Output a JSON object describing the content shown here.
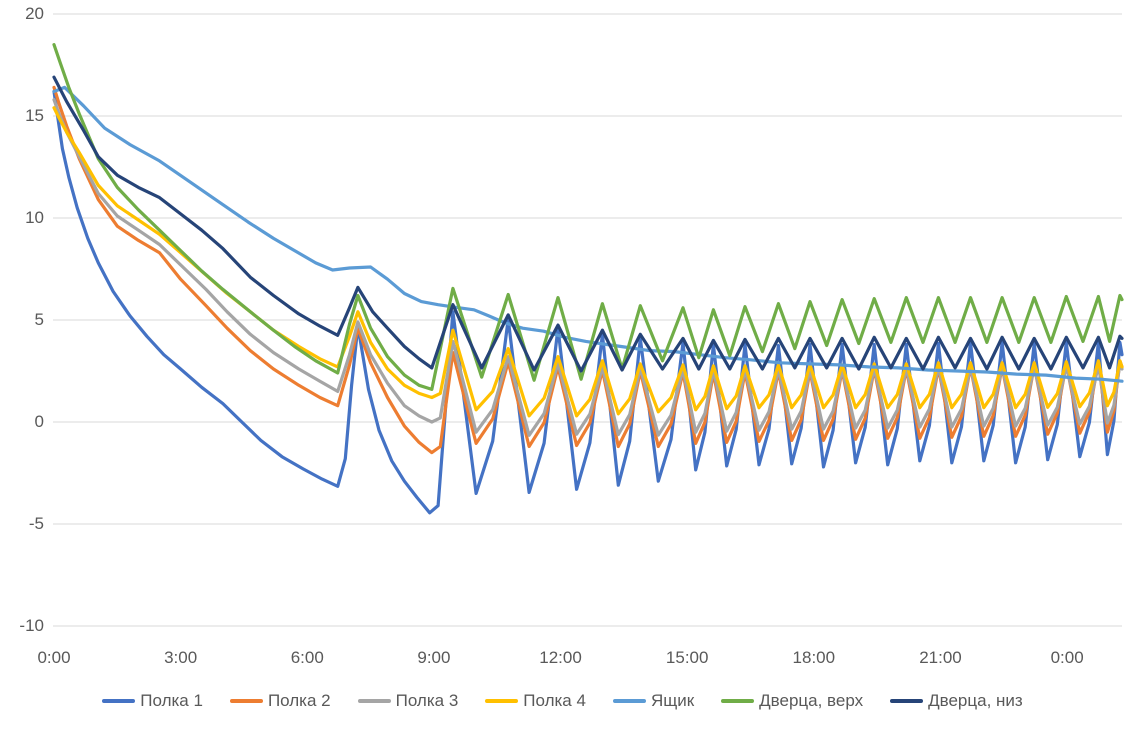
{
  "chart_data": {
    "type": "line",
    "title": "",
    "background": "#FFFFFF",
    "text_color": "#595959",
    "gridline_color": "#D9D9D9",
    "grid": "horizontal-only",
    "legend_position": "bottom",
    "x_axis": {
      "tick_labels": [
        "0:00",
        "3:00",
        "6:00",
        "9:00",
        "12:00",
        "15:00",
        "18:00",
        "21:00",
        "0:00"
      ],
      "tick_hours": [
        0,
        3,
        6,
        9,
        12,
        15,
        18,
        21,
        24
      ],
      "range_hours": [
        0,
        25.3
      ]
    },
    "y_axis": {
      "tick_labels": [
        "-10",
        "-5",
        "0",
        "5",
        "10",
        "15",
        "20"
      ],
      "ticks": [
        -10,
        -5,
        0,
        5,
        10,
        15,
        20
      ],
      "range": [
        -10,
        20
      ]
    },
    "cycle_peak_times_hours": [
      9.45,
      10.76,
      11.94,
      12.99,
      13.89,
      14.9,
      15.62,
      16.37,
      17.16,
      17.91,
      18.67,
      19.43,
      20.19,
      20.95,
      21.71,
      22.46,
      23.22,
      23.98,
      24.74,
      25.25
    ],
    "series": [
      {
        "name": "Полка 1",
        "color": "#4472C4",
        "shape": "shelf",
        "pre": [
          [
            0,
            16.2
          ],
          [
            0.1,
            14.8
          ],
          [
            0.2,
            13.4
          ],
          [
            0.35,
            12.0
          ],
          [
            0.55,
            10.5
          ],
          [
            0.8,
            9.0
          ],
          [
            1.05,
            7.8
          ],
          [
            1.4,
            6.4
          ],
          [
            1.8,
            5.2
          ],
          [
            2.2,
            4.2
          ],
          [
            2.6,
            3.3
          ],
          [
            3.0,
            2.6
          ],
          [
            3.5,
            1.7
          ],
          [
            4.0,
            0.9
          ],
          [
            4.45,
            0.0
          ],
          [
            4.9,
            -0.9
          ],
          [
            5.4,
            -1.7
          ],
          [
            5.9,
            -2.3
          ],
          [
            6.35,
            -2.8
          ],
          [
            6.72,
            -3.15
          ],
          [
            6.9,
            -1.8
          ],
          [
            7.05,
            1.8
          ],
          [
            7.2,
            4.7
          ],
          [
            7.45,
            1.6
          ],
          [
            7.7,
            -0.4
          ],
          [
            8.0,
            -1.9
          ],
          [
            8.3,
            -2.9
          ],
          [
            8.6,
            -3.7
          ],
          [
            8.9,
            -4.45
          ],
          [
            9.1,
            -4.1
          ]
        ],
        "peaks": [
          5.4,
          5.05,
          4.6,
          4.3,
          4.1,
          3.9,
          3.8,
          3.8,
          3.75,
          3.8,
          3.8,
          3.8,
          3.8,
          3.85,
          3.9,
          3.9,
          3.85,
          3.9,
          3.9,
          3.9
        ],
        "dips": [
          -3.5,
          -3.45,
          -3.3,
          -3.1,
          -2.9,
          -2.35,
          -2.15,
          -2.1,
          -2.05,
          -2.2,
          -2.0,
          -2.1,
          -1.9,
          -2.0,
          -1.9,
          -2.0,
          -1.85,
          -1.7,
          -1.6
        ],
        "tail": [
          [
            25.3,
            3.3
          ]
        ]
      },
      {
        "name": "Полка 2",
        "color": "#ED7D31",
        "shape": "shelf",
        "pre": [
          [
            0,
            16.4
          ],
          [
            0.12,
            15.6
          ],
          [
            0.3,
            14.5
          ],
          [
            0.6,
            12.9
          ],
          [
            1.05,
            10.9
          ],
          [
            1.5,
            9.6
          ],
          [
            2.0,
            8.9
          ],
          [
            2.5,
            8.3
          ],
          [
            3.0,
            7.0
          ],
          [
            3.6,
            5.7
          ],
          [
            4.1,
            4.6
          ],
          [
            4.65,
            3.5
          ],
          [
            5.2,
            2.6
          ],
          [
            5.8,
            1.8
          ],
          [
            6.3,
            1.2
          ],
          [
            6.72,
            0.8
          ],
          [
            7.0,
            2.8
          ],
          [
            7.2,
            4.6
          ],
          [
            7.5,
            2.9
          ],
          [
            7.9,
            1.2
          ],
          [
            8.3,
            -0.2
          ],
          [
            8.65,
            -1.0
          ],
          [
            8.95,
            -1.5
          ],
          [
            9.15,
            -1.2
          ]
        ],
        "peaks": [
          3.4,
          2.95,
          2.7,
          2.55,
          2.5,
          2.45,
          2.4,
          2.45,
          2.5,
          2.5,
          2.55,
          2.6,
          2.6,
          2.65,
          2.7,
          2.7,
          2.75,
          2.85,
          2.95,
          3.0
        ],
        "dips": [
          -1.05,
          -1.2,
          -1.15,
          -1.2,
          -1.2,
          -1.05,
          -1.0,
          -0.95,
          -0.9,
          -0.9,
          -0.85,
          -0.8,
          -0.8,
          -0.75,
          -0.7,
          -0.7,
          -0.6,
          -0.55,
          -0.5
        ],
        "tail": [
          [
            25.3,
            2.7
          ]
        ]
      },
      {
        "name": "Полка 3",
        "color": "#A5A5A5",
        "shape": "shelf",
        "pre": [
          [
            0,
            15.8
          ],
          [
            0.12,
            15.1
          ],
          [
            0.3,
            14.2
          ],
          [
            0.6,
            13.0
          ],
          [
            1.05,
            11.2
          ],
          [
            1.5,
            10.1
          ],
          [
            2.0,
            9.4
          ],
          [
            2.5,
            8.7
          ],
          [
            3.0,
            7.7
          ],
          [
            3.6,
            6.5
          ],
          [
            4.1,
            5.4
          ],
          [
            4.65,
            4.3
          ],
          [
            5.2,
            3.4
          ],
          [
            5.8,
            2.6
          ],
          [
            6.3,
            2.0
          ],
          [
            6.72,
            1.5
          ],
          [
            7.0,
            3.3
          ],
          [
            7.2,
            4.9
          ],
          [
            7.5,
            3.3
          ],
          [
            7.9,
            1.9
          ],
          [
            8.3,
            0.8
          ],
          [
            8.65,
            0.3
          ],
          [
            8.95,
            0.0
          ],
          [
            9.15,
            0.2
          ]
        ],
        "peaks": [
          3.95,
          3.2,
          2.9,
          2.7,
          2.65,
          2.6,
          2.55,
          2.6,
          2.6,
          2.6,
          2.6,
          2.65,
          2.65,
          2.7,
          2.7,
          2.7,
          2.7,
          2.75,
          2.8,
          2.85
        ],
        "dips": [
          -0.5,
          -0.65,
          -0.6,
          -0.62,
          -0.64,
          -0.5,
          -0.45,
          -0.4,
          -0.35,
          -0.35,
          -0.3,
          -0.3,
          -0.25,
          -0.25,
          -0.2,
          -0.2,
          -0.15,
          -0.1,
          -0.05
        ],
        "tail": [
          [
            25.3,
            2.6
          ]
        ]
      },
      {
        "name": "Полка 4",
        "color": "#FFC000",
        "shape": "shelf",
        "pre": [
          [
            0,
            15.4
          ],
          [
            0.12,
            14.9
          ],
          [
            0.3,
            14.2
          ],
          [
            0.6,
            13.2
          ],
          [
            1.05,
            11.6
          ],
          [
            1.5,
            10.6
          ],
          [
            2.0,
            9.9
          ],
          [
            2.5,
            9.2
          ],
          [
            3.0,
            8.3
          ],
          [
            3.6,
            7.2
          ],
          [
            4.1,
            6.3
          ],
          [
            4.65,
            5.4
          ],
          [
            5.2,
            4.5
          ],
          [
            5.8,
            3.7
          ],
          [
            6.3,
            3.1
          ],
          [
            6.72,
            2.7
          ],
          [
            7.0,
            4.2
          ],
          [
            7.2,
            5.4
          ],
          [
            7.5,
            3.9
          ],
          [
            7.9,
            2.6
          ],
          [
            8.3,
            1.8
          ],
          [
            8.65,
            1.4
          ],
          [
            8.95,
            1.2
          ],
          [
            9.15,
            1.4
          ]
        ],
        "peaks": [
          4.5,
          3.6,
          3.2,
          3.0,
          2.85,
          2.8,
          2.75,
          2.75,
          2.8,
          2.8,
          2.8,
          2.85,
          2.85,
          2.9,
          2.9,
          2.9,
          2.9,
          2.95,
          3.0,
          3.0
        ],
        "dips": [
          0.6,
          0.3,
          0.3,
          0.4,
          0.5,
          0.6,
          0.65,
          0.7,
          0.7,
          0.7,
          0.7,
          0.7,
          0.7,
          0.7,
          0.7,
          0.7,
          0.72,
          0.75,
          0.8
        ],
        "tail": [
          [
            25.3,
            2.7
          ]
        ]
      },
      {
        "name": "Ящик",
        "color": "#5B9BD5",
        "shape": "smooth",
        "pre": [
          [
            0,
            16.2
          ],
          [
            0.25,
            16.4
          ],
          [
            0.7,
            15.5
          ],
          [
            1.2,
            14.4
          ],
          [
            1.8,
            13.6
          ],
          [
            2.5,
            12.8
          ],
          [
            3.2,
            11.8
          ],
          [
            3.9,
            10.8
          ],
          [
            4.6,
            9.8
          ],
          [
            5.2,
            9.0
          ],
          [
            5.7,
            8.4
          ],
          [
            6.2,
            7.8
          ],
          [
            6.6,
            7.45
          ],
          [
            7.0,
            7.55
          ],
          [
            7.5,
            7.6
          ],
          [
            7.9,
            7.0
          ],
          [
            8.3,
            6.3
          ],
          [
            8.7,
            5.9
          ],
          [
            9.1,
            5.75
          ],
          [
            9.6,
            5.6
          ],
          [
            9.95,
            5.5
          ],
          [
            10.3,
            5.2
          ],
          [
            10.7,
            4.85
          ],
          [
            11.1,
            4.6
          ],
          [
            11.6,
            4.45
          ],
          [
            12.1,
            4.15
          ],
          [
            12.6,
            3.95
          ],
          [
            13.1,
            3.8
          ],
          [
            13.6,
            3.65
          ],
          [
            14.1,
            3.5
          ],
          [
            14.7,
            3.45
          ],
          [
            15.3,
            3.3
          ],
          [
            15.9,
            3.15
          ],
          [
            16.5,
            3.05
          ],
          [
            17.2,
            2.9
          ],
          [
            17.9,
            2.85
          ],
          [
            18.6,
            2.8
          ],
          [
            19.3,
            2.7
          ],
          [
            20.0,
            2.65
          ],
          [
            20.7,
            2.55
          ],
          [
            21.4,
            2.5
          ],
          [
            22.1,
            2.45
          ],
          [
            22.8,
            2.35
          ],
          [
            23.5,
            2.3
          ],
          [
            24.2,
            2.15
          ],
          [
            24.8,
            2.1
          ],
          [
            25.3,
            2.0
          ]
        ]
      },
      {
        "name": "Дверца, верх",
        "color": "#70AD47",
        "shape": "door",
        "pre": [
          [
            0,
            18.5
          ],
          [
            0.15,
            17.6
          ],
          [
            0.35,
            16.4
          ],
          [
            0.6,
            15.1
          ],
          [
            1.05,
            12.9
          ],
          [
            1.5,
            11.5
          ],
          [
            2.0,
            10.4
          ],
          [
            2.5,
            9.4
          ],
          [
            3.0,
            8.4
          ],
          [
            3.5,
            7.4
          ],
          [
            4.0,
            6.5
          ],
          [
            4.65,
            5.4
          ],
          [
            5.2,
            4.5
          ],
          [
            5.7,
            3.7
          ],
          [
            6.2,
            3.0
          ],
          [
            6.72,
            2.4
          ],
          [
            7.0,
            4.8
          ],
          [
            7.2,
            6.2
          ],
          [
            7.5,
            4.6
          ],
          [
            7.9,
            3.2
          ],
          [
            8.3,
            2.3
          ],
          [
            8.65,
            1.8
          ],
          [
            8.95,
            1.6
          ]
        ],
        "peaks": [
          6.55,
          6.25,
          6.1,
          5.8,
          5.7,
          5.6,
          5.5,
          5.65,
          5.8,
          5.9,
          6.0,
          6.05,
          6.1,
          6.1,
          6.1,
          6.1,
          6.1,
          6.15,
          6.15,
          6.2
        ],
        "troughs": [
          2.2,
          2.05,
          2.1,
          2.6,
          3.0,
          3.15,
          3.25,
          3.45,
          3.6,
          3.75,
          3.85,
          3.9,
          3.9,
          3.9,
          3.9,
          3.9,
          3.9,
          3.95,
          3.95
        ],
        "tail": [
          [
            25.3,
            6.0
          ]
        ]
      },
      {
        "name": "Дверца, низ",
        "color": "#264478",
        "shape": "door",
        "pre": [
          [
            0,
            16.9
          ],
          [
            0.3,
            15.7
          ],
          [
            0.7,
            14.3
          ],
          [
            1.05,
            13.0
          ],
          [
            1.5,
            12.1
          ],
          [
            2.0,
            11.5
          ],
          [
            2.5,
            11.0
          ],
          [
            3.0,
            10.2
          ],
          [
            3.5,
            9.4
          ],
          [
            4.0,
            8.5
          ],
          [
            4.65,
            7.1
          ],
          [
            5.2,
            6.2
          ],
          [
            5.8,
            5.3
          ],
          [
            6.3,
            4.7
          ],
          [
            6.72,
            4.25
          ],
          [
            7.0,
            5.6
          ],
          [
            7.2,
            6.6
          ],
          [
            7.55,
            5.4
          ],
          [
            7.9,
            4.6
          ],
          [
            8.3,
            3.7
          ],
          [
            8.65,
            3.1
          ],
          [
            8.95,
            2.65
          ]
        ],
        "peaks": [
          5.75,
          5.25,
          4.75,
          4.5,
          4.3,
          4.1,
          4.0,
          4.05,
          4.1,
          4.1,
          4.1,
          4.15,
          4.1,
          4.15,
          4.1,
          4.15,
          4.1,
          4.15,
          4.15,
          4.2
        ],
        "troughs": [
          2.65,
          2.55,
          2.5,
          2.55,
          2.6,
          2.6,
          2.6,
          2.6,
          2.65,
          2.65,
          2.6,
          2.65,
          2.6,
          2.65,
          2.6,
          2.6,
          2.6,
          2.65,
          2.65
        ],
        "tail": [
          [
            25.3,
            4.1
          ]
        ]
      }
    ],
    "legend": {
      "labels": [
        "Полка 1",
        "Полка 2",
        "Полка 3",
        "Полка 4",
        "Ящик",
        "Дверца, верх",
        "Дверца, низ"
      ]
    }
  }
}
